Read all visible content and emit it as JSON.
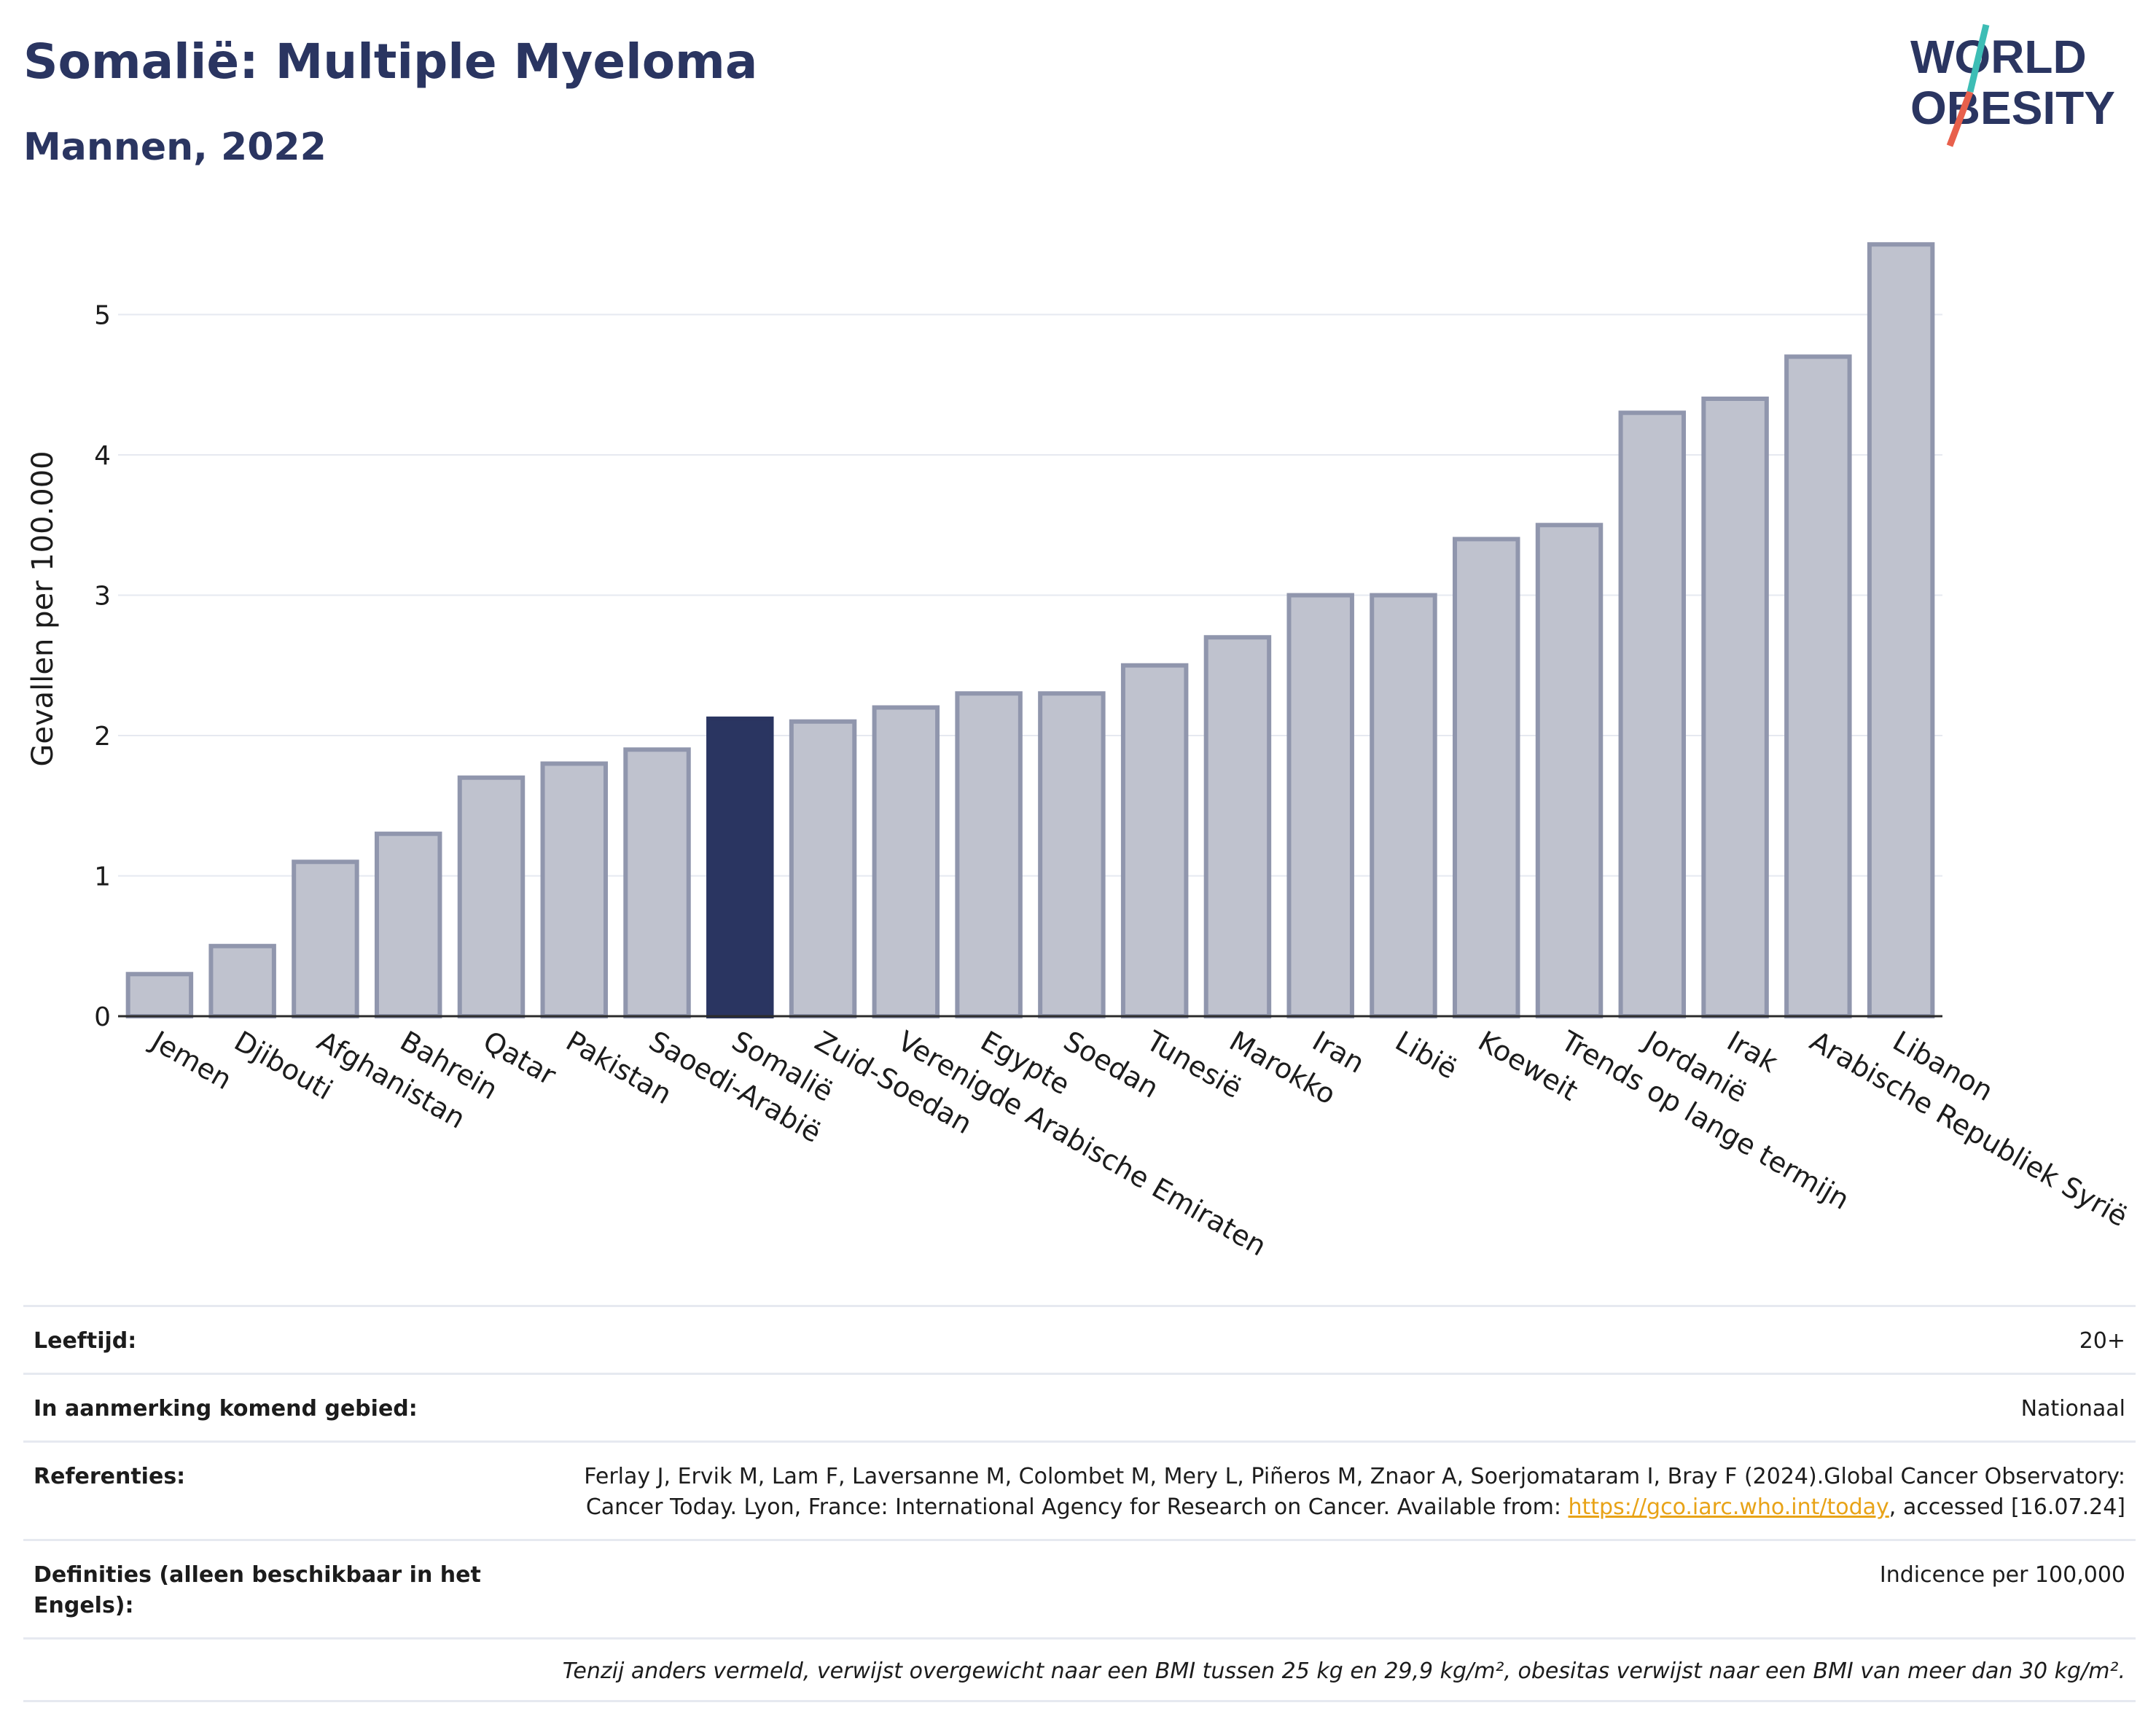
{
  "header": {
    "title": "Somalië: Multiple Myeloma",
    "subtitle": "Mannen, 2022"
  },
  "logo": {
    "line1": "WORLD",
    "line2": "OBESITY"
  },
  "colors": {
    "highlight": "#2a3561",
    "bar": "#bfc2ce",
    "bar_edge": "#9096ad",
    "link": "#e8a317"
  },
  "chart_data": {
    "type": "bar",
    "ylabel": "Gevallen per 100.000",
    "ylim": [
      0,
      5.6
    ],
    "yticks": [
      0,
      1,
      2,
      3,
      4,
      5
    ],
    "grid": true,
    "highlight": "Somalië",
    "categories": [
      "Jemen",
      "Djibouti",
      "Afghanistan",
      "Bahrein",
      "Qatar",
      "Pakistan",
      "Saoedi-Arabië",
      "Somalië",
      "Zuid-Soedan",
      "Verenigde Arabische Emiraten",
      "Egypte",
      "Soedan",
      "Tunesië",
      "Marokko",
      "Iran",
      "Libië",
      "Koeweit",
      "Trends op lange termijn",
      "Jordanië",
      "Irak",
      "Arabische Republiek Syrië",
      "Libanon"
    ],
    "values": [
      0.3,
      0.5,
      1.1,
      1.3,
      1.7,
      1.8,
      1.9,
      2.12,
      2.1,
      2.2,
      2.3,
      2.3,
      2.5,
      2.7,
      3.0,
      3.0,
      3.4,
      3.5,
      4.3,
      4.4,
      4.7,
      5.5
    ]
  },
  "meta": {
    "age_label": "Leeftijd:",
    "age_value": "20+",
    "area_label": "In aanmerking komend gebied:",
    "area_value": "Nationaal",
    "ref_label": "Referenties:",
    "ref_text_1": "Ferlay J, Ervik M, Lam F, Laversanne M, Colombet M, Mery L, Piñeros M, Znaor A, Soerjomataram I, Bray F (2024).Global Cancer Observatory: Cancer Today. Lyon, France: International Agency for Research on Cancer. Available from: ",
    "ref_link": "https://gco.iarc.who.int/today",
    "ref_text_2": ", accessed [16.07.24]",
    "def_label": "Definities (alleen beschikbaar in het Engels):",
    "def_value": "Indicence per 100,000",
    "note": "Tenzij anders vermeld, verwijst overgewicht naar een BMI tussen 25 kg en 29,9 kg/m², obesitas verwijst naar een BMI van meer dan 30 kg/m²."
  }
}
